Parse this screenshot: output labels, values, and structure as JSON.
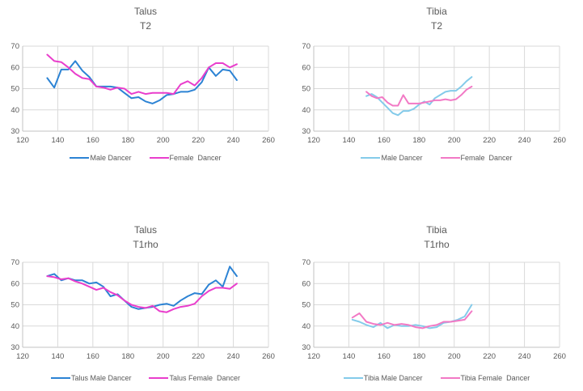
{
  "colors": {
    "grid": "#D9D9D9",
    "axis": "#C3C3C3",
    "text": "#595959",
    "talus_male_blue": "#2C83D4",
    "talus_female_magenta": "#E93ECC",
    "tibia_male_lightblue": "#84CBEA",
    "tibia_female_pink": "#F279C5"
  },
  "chart_data": [
    {
      "type": "line",
      "title_line1": "Talus",
      "title_line2": "T2",
      "xlim": [
        120,
        260
      ],
      "ylim": [
        30,
        70
      ],
      "xticks": [
        120,
        140,
        160,
        180,
        200,
        220,
        240,
        260
      ],
      "yticks": [
        30,
        40,
        50,
        60,
        70
      ],
      "grid": true,
      "legend_position": "bottom",
      "series": [
        {
          "name": "Male Dancer",
          "color": "#2C83D4",
          "x": [
            134,
            138,
            142,
            146,
            150,
            154,
            158,
            162,
            166,
            170,
            174,
            178,
            182,
            186,
            190,
            194,
            198,
            202,
            206,
            210,
            214,
            218,
            222,
            226,
            230,
            234,
            238,
            242
          ],
          "y": [
            55,
            50.5,
            59,
            59,
            63,
            58.5,
            55.5,
            51,
            51,
            51,
            50.5,
            48,
            45.5,
            46,
            44,
            43,
            44.5,
            47,
            47.5,
            48.5,
            48.5,
            49.5,
            53,
            60,
            56,
            59,
            58.5,
            54
          ]
        },
        {
          "name": "Female  Dancer",
          "color": "#E93ECC",
          "x": [
            134,
            138,
            142,
            146,
            150,
            154,
            158,
            162,
            166,
            170,
            174,
            178,
            182,
            186,
            190,
            194,
            198,
            202,
            206,
            210,
            214,
            218,
            222,
            226,
            230,
            234,
            238,
            242
          ],
          "y": [
            66,
            63,
            62.5,
            60,
            57,
            55,
            54.5,
            51,
            50.5,
            49.5,
            50.5,
            50,
            47.5,
            48.5,
            47.5,
            48,
            48,
            48,
            47.5,
            52,
            53.5,
            51.5,
            55,
            60,
            62,
            62,
            60,
            61.5
          ]
        }
      ]
    },
    {
      "type": "line",
      "title_line1": "Tibia",
      "title_line2": "T2",
      "xlim": [
        120,
        260
      ],
      "ylim": [
        30,
        70
      ],
      "xticks": [
        120,
        140,
        160,
        180,
        200,
        220,
        240,
        260
      ],
      "yticks": [
        30,
        40,
        50,
        60,
        70
      ],
      "grid": true,
      "legend_position": "bottom",
      "series": [
        {
          "name": "Male Dancer",
          "color": "#84CBEA",
          "x": [
            150,
            153,
            156,
            159,
            162,
            165,
            168,
            171,
            174,
            177,
            180,
            183,
            186,
            189,
            192,
            195,
            198,
            201,
            204,
            207,
            210
          ],
          "y": [
            46.5,
            47.5,
            46,
            43.5,
            41,
            38.5,
            37.5,
            39.5,
            39.5,
            40.5,
            42.5,
            44,
            42.5,
            45.5,
            47,
            48.5,
            49,
            49,
            51,
            53.5,
            55.5
          ]
        },
        {
          "name": "Female  Dancer",
          "color": "#F279C5",
          "x": [
            150,
            153,
            156,
            159,
            162,
            165,
            168,
            171,
            174,
            177,
            180,
            183,
            186,
            189,
            192,
            195,
            198,
            201,
            204,
            207,
            210
          ],
          "y": [
            48.5,
            46.5,
            45.5,
            46,
            43.5,
            42,
            42,
            47,
            43,
            43,
            43,
            43.5,
            44,
            44.5,
            44.5,
            45,
            44.5,
            45,
            47,
            49.5,
            51
          ]
        }
      ]
    },
    {
      "type": "line",
      "title_line1": "Talus",
      "title_line2": "T1rho",
      "xlim": [
        120,
        260
      ],
      "ylim": [
        30,
        70
      ],
      "xticks": [
        120,
        140,
        160,
        180,
        200,
        220,
        240,
        260
      ],
      "yticks": [
        30,
        40,
        50,
        60,
        70
      ],
      "grid": true,
      "legend_position": "bottom",
      "series": [
        {
          "name": "Talus Male Dancer",
          "color": "#2C83D4",
          "x": [
            134,
            138,
            142,
            146,
            150,
            154,
            158,
            162,
            166,
            170,
            174,
            178,
            182,
            186,
            190,
            194,
            198,
            202,
            206,
            210,
            214,
            218,
            222,
            226,
            230,
            234,
            238,
            242
          ],
          "y": [
            63.5,
            64.5,
            61.5,
            62.5,
            61.5,
            61.5,
            60,
            60.5,
            58.5,
            54,
            55,
            52,
            49,
            48,
            48.5,
            49,
            50,
            50.5,
            49.5,
            52,
            54,
            55.5,
            55,
            59.5,
            61.5,
            58.5,
            68,
            63.5
          ]
        },
        {
          "name": "Talus Female  Dancer",
          "color": "#E93ECC",
          "x": [
            134,
            138,
            142,
            146,
            150,
            154,
            158,
            162,
            166,
            170,
            174,
            178,
            182,
            186,
            190,
            194,
            198,
            202,
            206,
            210,
            214,
            218,
            222,
            226,
            230,
            234,
            238,
            242
          ],
          "y": [
            63.5,
            63,
            62,
            62.5,
            61,
            60,
            58.5,
            57,
            58,
            56,
            54.5,
            52,
            50,
            49,
            48.5,
            49.5,
            47,
            46.5,
            48,
            49,
            49.5,
            50.5,
            54,
            56.5,
            58,
            58,
            57.5,
            60
          ]
        }
      ]
    },
    {
      "type": "line",
      "title_line1": "Tibia",
      "title_line2": "T1rho",
      "xlim": [
        120,
        260
      ],
      "ylim": [
        30,
        70
      ],
      "xticks": [
        120,
        140,
        160,
        180,
        200,
        220,
        240,
        260
      ],
      "yticks": [
        30,
        40,
        50,
        60,
        70
      ],
      "grid": true,
      "legend_position": "bottom",
      "series": [
        {
          "name": "Tibia Male Dancer",
          "color": "#84CBEA",
          "x": [
            142,
            146,
            150,
            154,
            158,
            162,
            166,
            170,
            174,
            178,
            182,
            186,
            190,
            194,
            198,
            202,
            206,
            210
          ],
          "y": [
            43,
            42,
            40.5,
            39.5,
            41.5,
            39,
            40.5,
            40,
            40,
            40.5,
            40,
            39,
            39.5,
            41.5,
            42,
            43,
            44.5,
            50
          ]
        },
        {
          "name": "Tibia Female  Dancer",
          "color": "#F279C5",
          "x": [
            142,
            146,
            150,
            154,
            158,
            162,
            166,
            170,
            174,
            178,
            182,
            186,
            190,
            194,
            198,
            202,
            206,
            210
          ],
          "y": [
            44,
            46,
            42,
            41,
            40.5,
            41.5,
            40.5,
            41,
            40.5,
            39.5,
            39,
            40,
            40.5,
            42,
            42,
            42.5,
            43,
            47
          ]
        }
      ]
    }
  ]
}
